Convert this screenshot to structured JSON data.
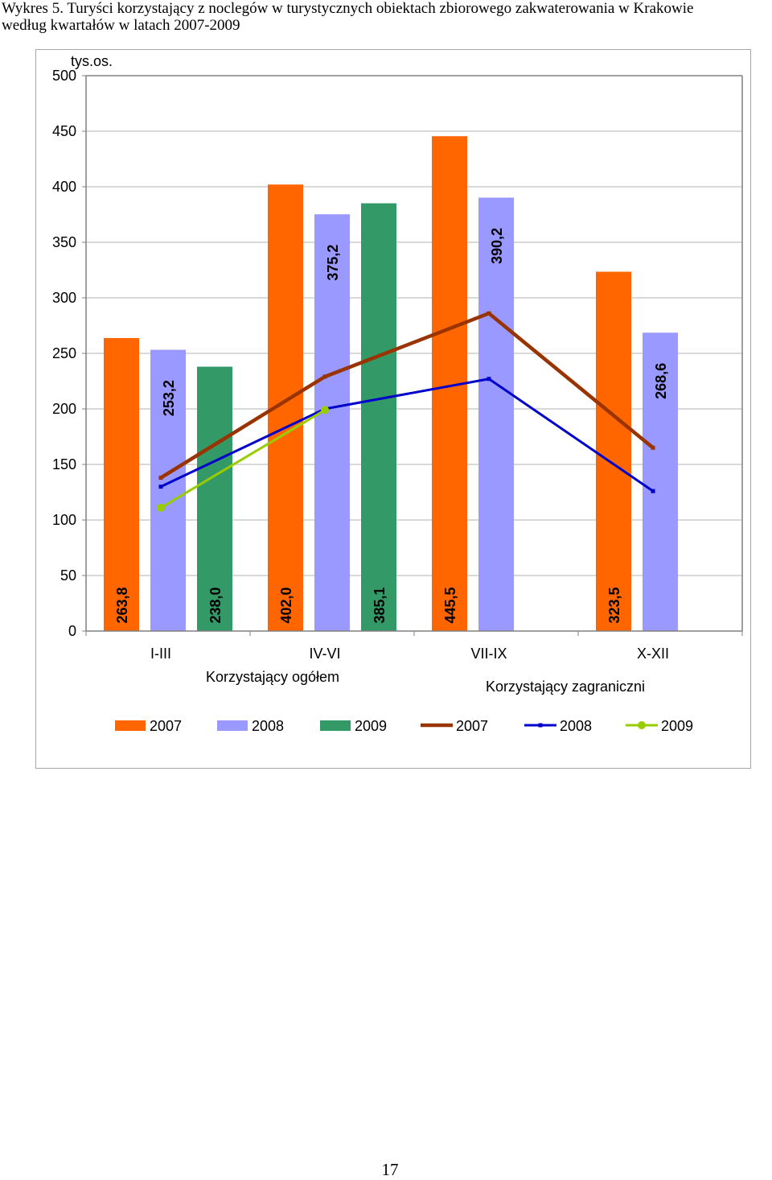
{
  "header": {
    "title_line1": "Wykres 5. Turyści korzystający z noclegów w turystycznych obiektach zbiorowego zakwaterowania w Krakowie",
    "title_line2": "według kwartałów w latach 2007-2009"
  },
  "page_number": "17",
  "chart_data": {
    "type": "bar",
    "unit_label": "tys.os.",
    "categories": [
      "I-III",
      "IV-VI",
      "VII-IX",
      "X-XII"
    ],
    "ylim": [
      0,
      500
    ],
    "y_ticks": [
      0,
      50,
      100,
      150,
      200,
      250,
      300,
      350,
      400,
      450,
      500
    ],
    "grid": true,
    "legend_position": "bottom",
    "bar_group_label": "Korzystający ogółem",
    "line_group_label": "Korzystający zagraniczni",
    "bar_series": [
      {
        "name": "2007",
        "color": "#ff6600",
        "values": [
          263.8,
          402.0,
          445.5,
          323.5
        ],
        "labels": [
          "263,8",
          "402,0",
          "445,5",
          "323,5"
        ]
      },
      {
        "name": "2008",
        "color": "#9999ff",
        "values": [
          253.2,
          375.2,
          390.2,
          268.6
        ],
        "labels": [
          "253,2",
          "375,2",
          "390,2",
          "268,6"
        ]
      },
      {
        "name": "2009",
        "color": "#339966",
        "values": [
          238.0,
          385.1,
          null,
          null
        ],
        "labels": [
          "238,0",
          "385,1",
          null,
          null
        ]
      }
    ],
    "line_series": [
      {
        "name": "2007",
        "color": "#993300",
        "values": [
          138,
          229,
          286,
          165
        ]
      },
      {
        "name": "2008",
        "color": "#0000cc",
        "values": [
          130,
          200,
          227,
          126
        ]
      },
      {
        "name": "2009",
        "color": "#99cc00",
        "values": [
          111,
          199,
          null,
          null
        ]
      }
    ]
  }
}
